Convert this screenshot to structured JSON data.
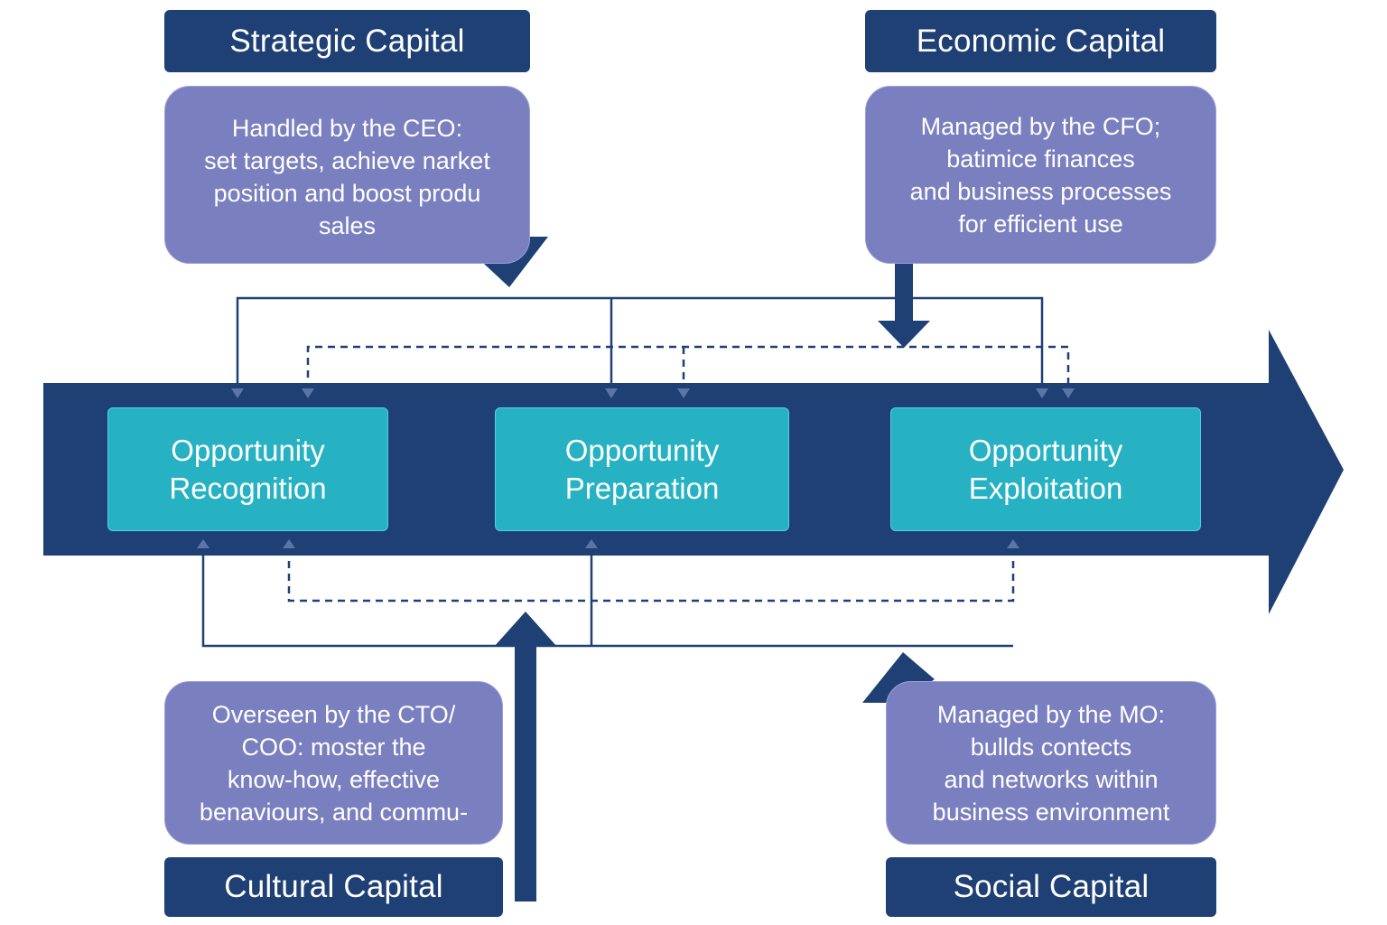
{
  "colors": {
    "navy": "#1f4074",
    "purple": "#7a80bf",
    "teal": "#27b2c4",
    "white": "#ffffff"
  },
  "capitals": {
    "strategic": {
      "title": "Strategic Capital",
      "lines": [
        "Handled by the CEO:",
        "set targets, achieve narket",
        "position and boost produ",
        "sales"
      ]
    },
    "economic": {
      "title": "Economic Capital",
      "lines": [
        "Managed by the CFO;",
        "batimice finances",
        "and business processes",
        "for efficient use"
      ]
    },
    "cultural": {
      "title": "Cultural Capital",
      "lines": [
        "Overseen by the CTO/",
        "COO: moster the",
        "know-how, effective",
        "benaviours, and commu-"
      ]
    },
    "social": {
      "title": "Social Capital",
      "lines": [
        "Managed by the MO:",
        "bullds contects",
        "and networks within",
        "business environment"
      ]
    }
  },
  "stages": [
    {
      "line1": "Opportunity",
      "line2": "Recognition"
    },
    {
      "line1": "Opportunity",
      "line2": "Preparation"
    },
    {
      "line1": "Opportunity",
      "line2": "Exploitation"
    }
  ]
}
